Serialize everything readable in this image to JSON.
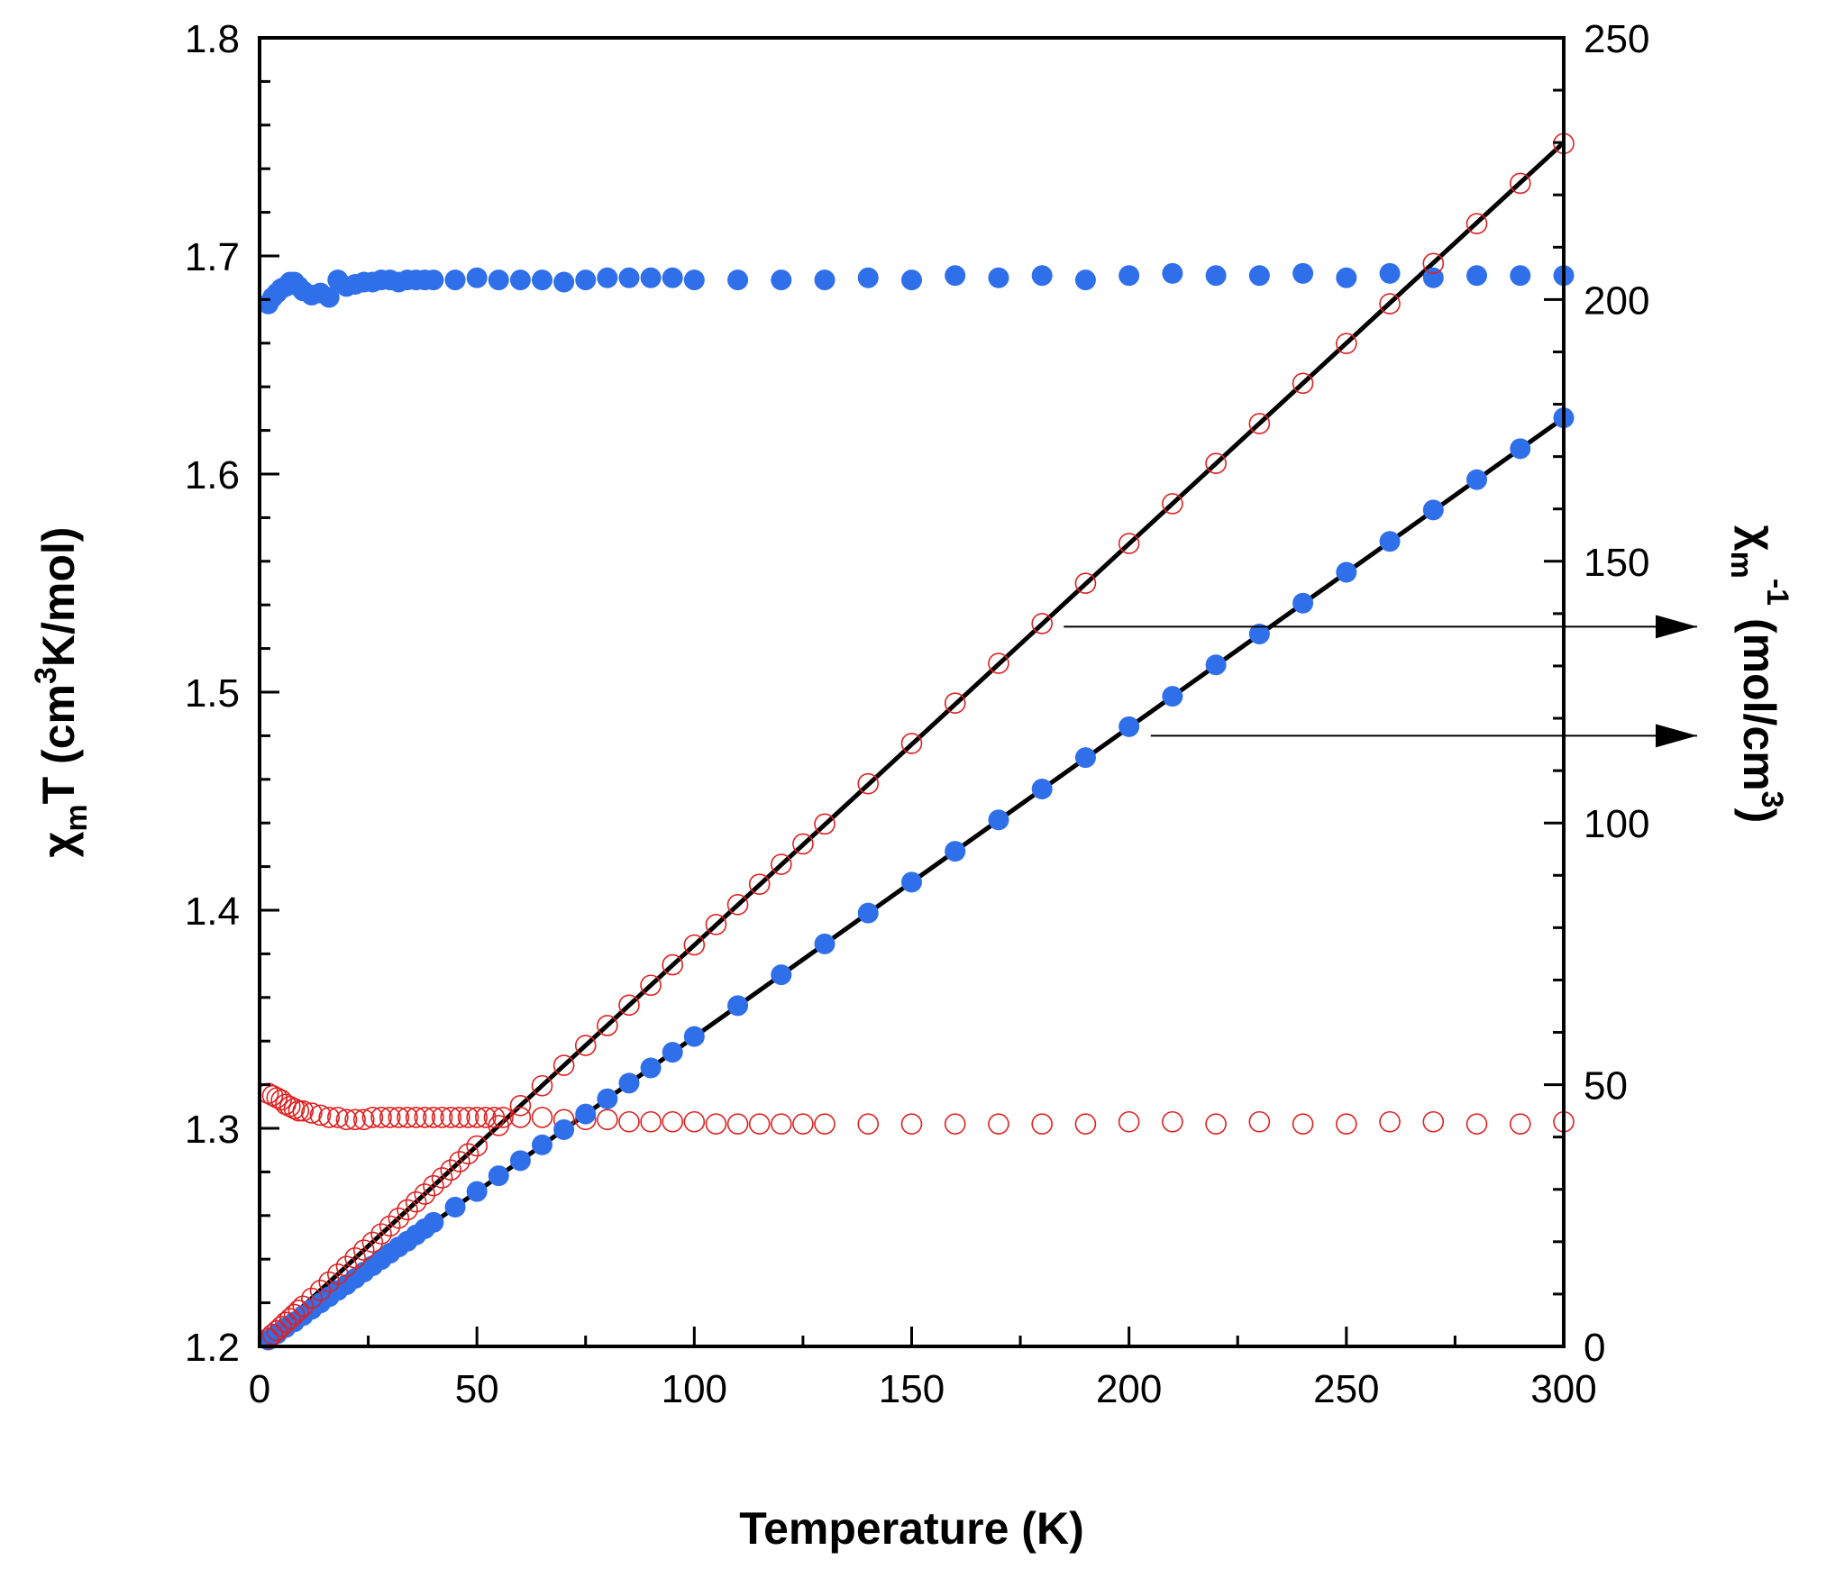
{
  "chart_data": {
    "type": "scatter",
    "xlabel": "Temperature (K)",
    "ylabel_left": "χmT (cm3K/mol)",
    "ylabel_left_parts": {
      "chi": "χ",
      "sub": "m",
      "t": "T",
      "unit_open": "(cm",
      "sup": "3",
      "unit_close": "K/mol)"
    },
    "ylabel_right": "χm-1 (mol/cm3)",
    "ylabel_right_parts": {
      "chi": "χ",
      "sub": "m",
      "sup": "-1",
      "unit_open": "(mol/cm",
      "unit_sup": "3",
      "unit_close": ")"
    },
    "xlim": [
      0,
      300
    ],
    "ylim_left": [
      1.2,
      1.8
    ],
    "ylim_right": [
      0,
      250
    ],
    "x_ticks": [
      "0",
      "50",
      "100",
      "150",
      "200",
      "250",
      "300"
    ],
    "y_left_ticks": [
      "1.2",
      "1.3",
      "1.4",
      "1.5",
      "1.6",
      "1.7",
      "1.8"
    ],
    "y_right_ticks": [
      "0",
      "50",
      "100",
      "150",
      "200",
      "250"
    ],
    "colors": {
      "blue": "#2f6fea",
      "red": "#e02020",
      "black": "#000000"
    },
    "series": [
      {
        "name": "chiT_blue",
        "axis": "left",
        "marker": "filled-circle",
        "color": "#2f6fea",
        "x": [
          2,
          3,
          4,
          5,
          6,
          7,
          8,
          9,
          10,
          12,
          14,
          16,
          18,
          20,
          22,
          24,
          26,
          28,
          30,
          32,
          34,
          36,
          38,
          40,
          45,
          50,
          55,
          60,
          65,
          70,
          75,
          80,
          85,
          90,
          95,
          100,
          110,
          120,
          130,
          140,
          150,
          160,
          170,
          180,
          190,
          200,
          210,
          220,
          230,
          240,
          250,
          260,
          270,
          280,
          290,
          300
        ],
        "y": [
          1.678,
          1.681,
          1.683,
          1.685,
          1.686,
          1.688,
          1.688,
          1.686,
          1.684,
          1.682,
          1.683,
          1.681,
          1.689,
          1.686,
          1.687,
          1.688,
          1.688,
          1.689,
          1.689,
          1.688,
          1.689,
          1.689,
          1.689,
          1.689,
          1.689,
          1.69,
          1.689,
          1.689,
          1.689,
          1.688,
          1.689,
          1.69,
          1.69,
          1.69,
          1.69,
          1.689,
          1.689,
          1.689,
          1.689,
          1.69,
          1.689,
          1.691,
          1.69,
          1.691,
          1.689,
          1.691,
          1.692,
          1.691,
          1.691,
          1.692,
          1.69,
          1.692,
          1.69,
          1.691,
          1.691,
          1.691
        ]
      },
      {
        "name": "chiT_red",
        "axis": "left",
        "marker": "open-circle",
        "color": "#e02020",
        "x": [
          2,
          3,
          4,
          5,
          6,
          7,
          8,
          9,
          10,
          12,
          14,
          16,
          18,
          20,
          22,
          24,
          26,
          28,
          30,
          32,
          34,
          36,
          38,
          40,
          42,
          44,
          46,
          48,
          50,
          52,
          54,
          56,
          60,
          65,
          70,
          75,
          80,
          85,
          90,
          95,
          100,
          105,
          110,
          115,
          120,
          125,
          130,
          140,
          150,
          160,
          170,
          180,
          190,
          200,
          210,
          220,
          230,
          240,
          250,
          260,
          270,
          280,
          290,
          300
        ],
        "y": [
          1.316,
          1.315,
          1.314,
          1.313,
          1.311,
          1.31,
          1.309,
          1.308,
          1.308,
          1.307,
          1.306,
          1.305,
          1.305,
          1.304,
          1.304,
          1.304,
          1.305,
          1.305,
          1.305,
          1.305,
          1.305,
          1.305,
          1.305,
          1.305,
          1.305,
          1.305,
          1.305,
          1.305,
          1.305,
          1.305,
          1.305,
          1.305,
          1.305,
          1.305,
          1.304,
          1.304,
          1.304,
          1.303,
          1.303,
          1.303,
          1.303,
          1.302,
          1.302,
          1.302,
          1.302,
          1.302,
          1.302,
          1.302,
          1.302,
          1.302,
          1.302,
          1.302,
          1.302,
          1.303,
          1.303,
          1.302,
          1.303,
          1.302,
          1.302,
          1.303,
          1.303,
          1.302,
          1.302,
          1.303
        ]
      },
      {
        "name": "inv_chi_blue",
        "axis": "right",
        "marker": "filled-circle",
        "color": "#2f6fea",
        "x": [
          2,
          4,
          6,
          8,
          10,
          12,
          14,
          16,
          18,
          20,
          22,
          24,
          26,
          28,
          30,
          32,
          34,
          36,
          38,
          40,
          45,
          50,
          55,
          60,
          65,
          70,
          75,
          80,
          85,
          90,
          95,
          100,
          110,
          120,
          130,
          140,
          150,
          160,
          170,
          180,
          190,
          200,
          210,
          220,
          230,
          240,
          250,
          260,
          270,
          280,
          290,
          300
        ],
        "y": [
          1.2,
          2.4,
          3.6,
          4.7,
          5.9,
          7.1,
          8.3,
          9.5,
          10.7,
          11.8,
          13.0,
          14.2,
          15.4,
          16.6,
          17.8,
          19.0,
          20.1,
          21.3,
          22.5,
          23.7,
          26.6,
          29.6,
          32.6,
          35.5,
          38.5,
          41.4,
          44.4,
          47.3,
          50.3,
          53.2,
          56.2,
          59.2,
          65.1,
          71.0,
          76.9,
          82.8,
          88.7,
          94.6,
          100.6,
          106.5,
          112.5,
          118.4,
          124.2,
          130.2,
          136.1,
          142.0,
          147.9,
          153.8,
          159.8,
          165.6,
          171.5,
          177.4
        ]
      },
      {
        "name": "inv_chi_red",
        "axis": "right",
        "marker": "open-circle",
        "color": "#e02020",
        "x": [
          2,
          3,
          4,
          5,
          6,
          7,
          8,
          9,
          10,
          12,
          14,
          16,
          18,
          20,
          22,
          24,
          26,
          28,
          30,
          32,
          34,
          36,
          38,
          40,
          42,
          44,
          46,
          48,
          50,
          55,
          60,
          65,
          70,
          75,
          80,
          85,
          90,
          95,
          100,
          105,
          110,
          115,
          120,
          125,
          130,
          140,
          150,
          160,
          170,
          180,
          190,
          200,
          210,
          220,
          230,
          240,
          250,
          260,
          270,
          280,
          290,
          300
        ],
        "y": [
          1.5,
          2.3,
          3.0,
          3.8,
          4.6,
          5.3,
          6.1,
          6.9,
          7.7,
          9.2,
          10.7,
          12.3,
          13.8,
          15.3,
          16.9,
          18.4,
          19.9,
          21.5,
          23.0,
          24.5,
          26.1,
          27.6,
          29.1,
          30.7,
          32.2,
          33.7,
          35.3,
          36.8,
          38.3,
          42.2,
          46.0,
          49.8,
          53.7,
          57.5,
          61.3,
          65.2,
          69.0,
          72.9,
          76.7,
          80.6,
          84.4,
          88.3,
          92.1,
          96.0,
          99.8,
          107.5,
          115.2,
          122.9,
          130.5,
          138.1,
          145.8,
          153.4,
          161.0,
          168.7,
          176.3,
          184.0,
          191.6,
          199.2,
          206.9,
          214.5,
          222.2,
          229.8
        ]
      }
    ],
    "fit_lines": [
      {
        "name": "fit_red",
        "axis": "right",
        "color": "#000000",
        "x": [
          0,
          300
        ],
        "y": [
          0,
          230
        ]
      },
      {
        "name": "fit_blue",
        "axis": "right",
        "color": "#000000",
        "x": [
          0,
          300
        ],
        "y": [
          0,
          177.4
        ]
      }
    ],
    "annotations": [
      {
        "name": "arrow-upper",
        "type": "arrow",
        "from": {
          "x": 185,
          "y_left": 1.53
        },
        "to_axis": "right",
        "direction": "right"
      },
      {
        "name": "arrow-lower",
        "type": "arrow",
        "from": {
          "x": 205,
          "y_left": 1.48
        },
        "to_axis": "right",
        "direction": "right"
      }
    ]
  }
}
